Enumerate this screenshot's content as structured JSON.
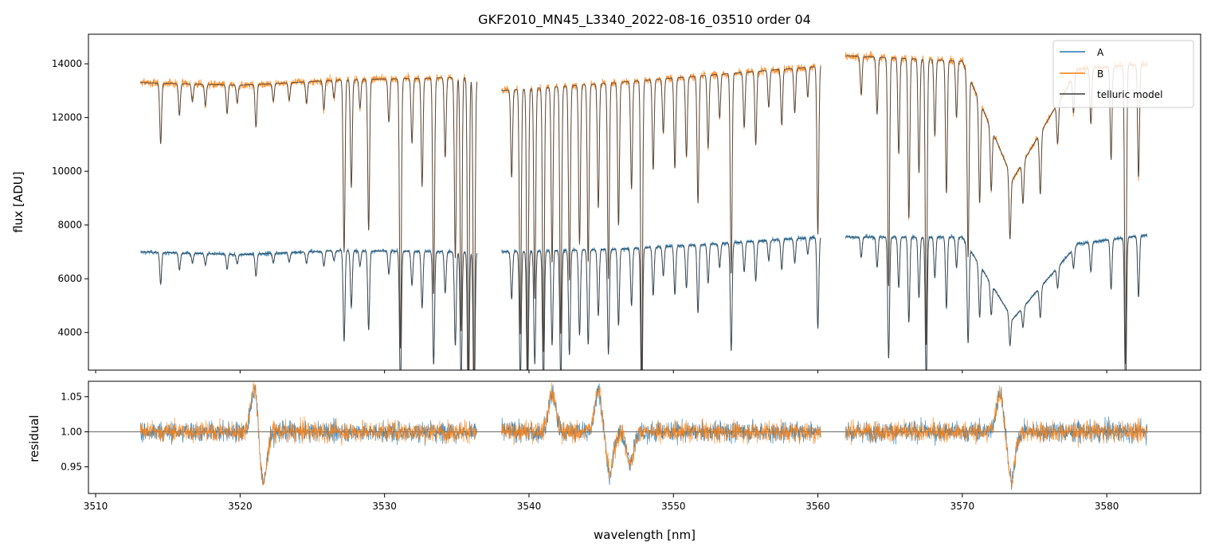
{
  "chart_data": {
    "type": "line",
    "title": "GKF2010_MN45_L3340_2022-08-16_03510  order 04",
    "xlabel": "wavelength [nm]",
    "xlim": [
      3509.5,
      3586.5
    ],
    "x_ticks": [
      3510,
      3520,
      3530,
      3540,
      3550,
      3560,
      3570,
      3580
    ],
    "x_tick_labels": [
      "3510",
      "3520",
      "3530",
      "3540",
      "3550",
      "3560",
      "3570",
      "3580"
    ],
    "colors": {
      "A": "#1f77b4",
      "B": "#ff7f0e",
      "model": "#3a3a3a",
      "refline": "#555555"
    },
    "segments": [
      [
        3513.1,
        3536.4
      ],
      [
        3538.1,
        3560.2
      ],
      [
        3561.9,
        3582.8
      ]
    ],
    "top_panel": {
      "ylabel": "flux [ADU]",
      "ylim": [
        2600,
        15100
      ],
      "y_ticks": [
        4000,
        6000,
        8000,
        10000,
        12000,
        14000
      ],
      "y_tick_labels": [
        "4000",
        "6000",
        "8000",
        "10000",
        "12000",
        "14000"
      ],
      "legend": {
        "position": "top-right",
        "entries": [
          "A",
          "B",
          "telluric model"
        ]
      },
      "series": [
        {
          "name": "A",
          "continuum_x": [
            3513,
            3520,
            3527,
            3536,
            3538,
            3546,
            3553,
            3560,
            3562,
            3570,
            3573.5,
            3578,
            3583
          ],
          "continuum_y": [
            7000,
            6900,
            7050,
            7000,
            7000,
            7100,
            7300,
            7550,
            7550,
            7550,
            4500,
            7300,
            7650
          ]
        },
        {
          "name": "B",
          "continuum_x": [
            3513,
            3520,
            3527,
            3536,
            3538,
            3546,
            3553,
            3560,
            3562,
            3570,
            3573.5,
            3578,
            3583
          ],
          "continuum_y": [
            13300,
            13200,
            13400,
            13500,
            13000,
            13300,
            13600,
            13900,
            14300,
            14100,
            9700,
            13800,
            14000
          ]
        }
      ],
      "absorption_lines": [
        {
          "x": 3514.5,
          "depth": 0.17
        },
        {
          "x": 3515.8,
          "depth": 0.09
        },
        {
          "x": 3516.7,
          "depth": 0.05
        },
        {
          "x": 3517.6,
          "depth": 0.06
        },
        {
          "x": 3519.1,
          "depth": 0.08
        },
        {
          "x": 3519.8,
          "depth": 0.05
        },
        {
          "x": 3521.1,
          "depth": 0.12
        },
        {
          "x": 3522.3,
          "depth": 0.05
        },
        {
          "x": 3523.4,
          "depth": 0.05
        },
        {
          "x": 3524.6,
          "depth": 0.06
        },
        {
          "x": 3525.8,
          "depth": 0.08
        },
        {
          "x": 3526.5,
          "depth": 0.05
        },
        {
          "x": 3527.2,
          "depth": 0.48
        },
        {
          "x": 3527.7,
          "depth": 0.3
        },
        {
          "x": 3528.3,
          "depth": 0.08
        },
        {
          "x": 3528.9,
          "depth": 0.42
        },
        {
          "x": 3530.3,
          "depth": 0.12
        },
        {
          "x": 3531.1,
          "depth": 0.75
        },
        {
          "x": 3531.9,
          "depth": 0.18
        },
        {
          "x": 3532.6,
          "depth": 0.3
        },
        {
          "x": 3533.4,
          "depth": 0.6
        },
        {
          "x": 3534.2,
          "depth": 0.22
        },
        {
          "x": 3534.9,
          "depth": 0.5
        },
        {
          "x": 3535.3,
          "depth": 0.7
        },
        {
          "x": 3535.8,
          "depth": 0.85
        },
        {
          "x": 3536.2,
          "depth": 0.9
        },
        {
          "x": 3538.8,
          "depth": 0.25
        },
        {
          "x": 3539.4,
          "depth": 0.7
        },
        {
          "x": 3539.9,
          "depth": 0.8
        },
        {
          "x": 3540.4,
          "depth": 0.6
        },
        {
          "x": 3541.0,
          "depth": 0.75
        },
        {
          "x": 3541.6,
          "depth": 0.5
        },
        {
          "x": 3542.2,
          "depth": 0.7
        },
        {
          "x": 3542.8,
          "depth": 0.55
        },
        {
          "x": 3543.5,
          "depth": 0.45
        },
        {
          "x": 3544.1,
          "depth": 0.5
        },
        {
          "x": 3544.8,
          "depth": 0.35
        },
        {
          "x": 3545.5,
          "depth": 0.55
        },
        {
          "x": 3546.2,
          "depth": 0.4
        },
        {
          "x": 3547.1,
          "depth": 0.3
        },
        {
          "x": 3547.8,
          "depth": 0.85
        },
        {
          "x": 3548.6,
          "depth": 0.25
        },
        {
          "x": 3549.3,
          "depth": 0.15
        },
        {
          "x": 3550.1,
          "depth": 0.25
        },
        {
          "x": 3550.9,
          "depth": 0.22
        },
        {
          "x": 3551.7,
          "depth": 0.35
        },
        {
          "x": 3552.4,
          "depth": 0.2
        },
        {
          "x": 3553.2,
          "depth": 0.12
        },
        {
          "x": 3554.0,
          "depth": 0.55
        },
        {
          "x": 3554.9,
          "depth": 0.15
        },
        {
          "x": 3555.7,
          "depth": 0.2
        },
        {
          "x": 3556.6,
          "depth": 0.1
        },
        {
          "x": 3557.5,
          "depth": 0.15
        },
        {
          "x": 3558.4,
          "depth": 0.12
        },
        {
          "x": 3559.3,
          "depth": 0.08
        },
        {
          "x": 3560.0,
          "depth": 0.45
        },
        {
          "x": 3563.0,
          "depth": 0.1
        },
        {
          "x": 3564.1,
          "depth": 0.15
        },
        {
          "x": 3564.9,
          "depth": 0.6
        },
        {
          "x": 3565.6,
          "depth": 0.25
        },
        {
          "x": 3566.3,
          "depth": 0.42
        },
        {
          "x": 3567.0,
          "depth": 0.3
        },
        {
          "x": 3567.5,
          "depth": 0.75
        },
        {
          "x": 3568.1,
          "depth": 0.2
        },
        {
          "x": 3568.9,
          "depth": 0.35
        },
        {
          "x": 3569.6,
          "depth": 0.15
        },
        {
          "x": 3570.4,
          "depth": 0.5
        },
        {
          "x": 3571.2,
          "depth": 0.3
        },
        {
          "x": 3572.0,
          "depth": 0.2
        },
        {
          "x": 3573.3,
          "depth": 0.25
        },
        {
          "x": 3574.2,
          "depth": 0.15
        },
        {
          "x": 3575.4,
          "depth": 0.2
        },
        {
          "x": 3576.6,
          "depth": 0.12
        },
        {
          "x": 3577.7,
          "depth": 0.1
        },
        {
          "x": 3578.9,
          "depth": 0.15
        },
        {
          "x": 3580.3,
          "depth": 0.25
        },
        {
          "x": 3581.3,
          "depth": 0.8
        },
        {
          "x": 3582.2,
          "depth": 0.3
        }
      ]
    },
    "bottom_panel": {
      "ylabel": "residual",
      "ylim": [
        0.912,
        1.072
      ],
      "y_ticks": [
        0.95,
        1.0,
        1.05
      ],
      "y_tick_labels": [
        "0.95",
        "1.00",
        "1.05"
      ],
      "reference_line": 1.0,
      "noise_sigma": 0.02,
      "features": [
        {
          "x": 3521.0,
          "amplitude": 0.065,
          "shape": "rise"
        },
        {
          "x": 3521.6,
          "amplitude": -0.075,
          "shape": "drop"
        },
        {
          "x": 3541.6,
          "amplitude": 0.055,
          "shape": "rise"
        },
        {
          "x": 3544.8,
          "amplitude": 0.06,
          "shape": "rise"
        },
        {
          "x": 3545.6,
          "amplitude": -0.06,
          "shape": "drop"
        },
        {
          "x": 3547.0,
          "amplitude": -0.045,
          "shape": "drop"
        },
        {
          "x": 3572.6,
          "amplitude": 0.055,
          "shape": "rise"
        },
        {
          "x": 3573.4,
          "amplitude": -0.07,
          "shape": "drop"
        }
      ]
    }
  }
}
